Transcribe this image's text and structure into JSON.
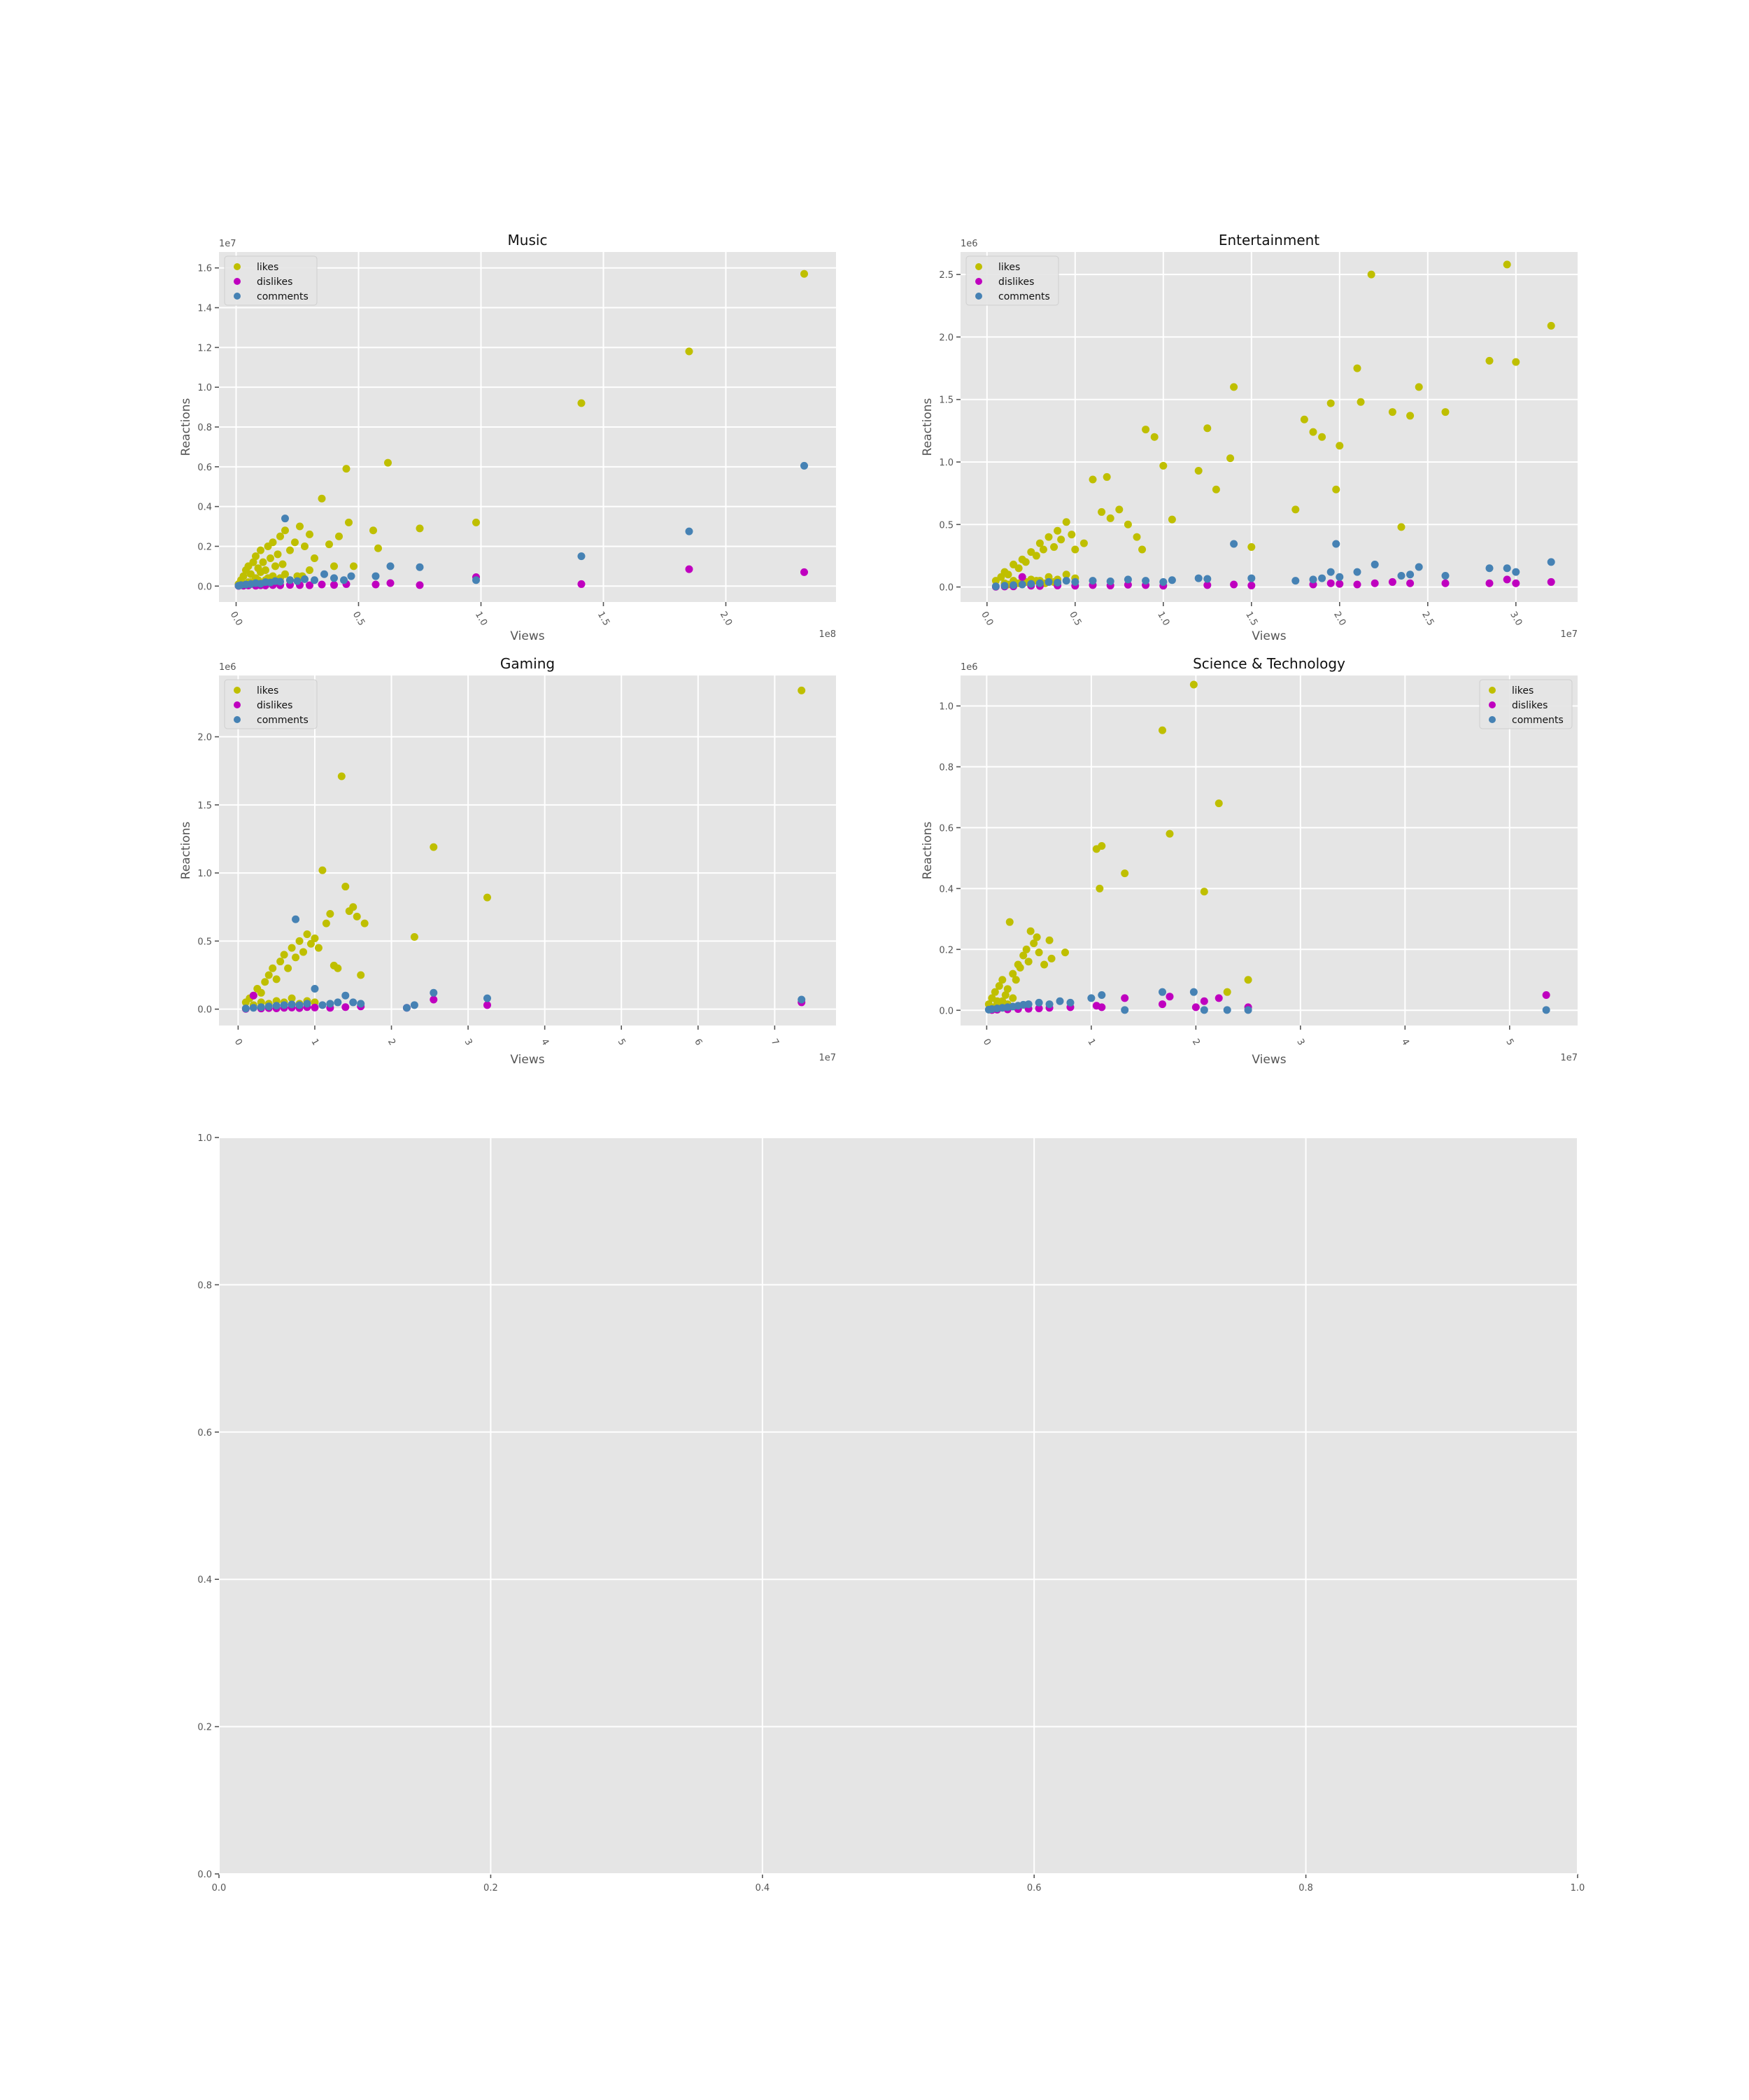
{
  "colors": {
    "likes": "#bfbf00",
    "dislikes": "#bf00bf",
    "comments": "#4682b4"
  },
  "chart_data": [
    {
      "type": "scatter",
      "title": "Music",
      "xlabel": "Views",
      "ylabel": "Reactions",
      "x_offset": "1e8",
      "y_offset": "1e7",
      "xlim": [
        -0.07,
        2.45
      ],
      "ylim": [
        -0.08,
        1.68
      ],
      "xticks": [
        0.0,
        0.5,
        1.0,
        1.5,
        2.0
      ],
      "yticks": [
        0.0,
        0.2,
        0.4,
        0.6,
        0.8,
        1.0,
        1.2,
        1.4,
        1.6
      ],
      "x_tick_decimals": 1,
      "y_tick_decimals": 1,
      "x_tick_rotation": 60,
      "legend_position": "upper-left",
      "series": [
        {
          "name": "likes",
          "color_key": "likes",
          "x": [
            0.01,
            0.02,
            0.03,
            0.04,
            0.05,
            0.06,
            0.07,
            0.08,
            0.09,
            0.1,
            0.11,
            0.12,
            0.13,
            0.14,
            0.15,
            0.16,
            0.17,
            0.18,
            0.19,
            0.2,
            0.22,
            0.24,
            0.26,
            0.28,
            0.3,
            0.32,
            0.35,
            0.38,
            0.4,
            0.42,
            0.45,
            0.46,
            0.48,
            0.56,
            0.58,
            0.62,
            0.75,
            0.98,
            1.41,
            1.85,
            2.32,
            0.05,
            0.08,
            0.1,
            0.12,
            0.15,
            0.18,
            0.2,
            0.25,
            0.3,
            0.06,
            0.09,
            0.13,
            0.17,
            0.22,
            0.27
          ],
          "y": [
            0.01,
            0.03,
            0.05,
            0.08,
            0.1,
            0.06,
            0.12,
            0.15,
            0.09,
            0.18,
            0.12,
            0.08,
            0.2,
            0.14,
            0.22,
            0.1,
            0.16,
            0.25,
            0.11,
            0.28,
            0.18,
            0.22,
            0.3,
            0.2,
            0.26,
            0.14,
            0.44,
            0.21,
            0.1,
            0.25,
            0.59,
            0.32,
            0.1,
            0.28,
            0.19,
            0.62,
            0.29,
            0.32,
            0.92,
            1.18,
            1.57,
            0.02,
            0.04,
            0.07,
            0.03,
            0.05,
            0.04,
            0.06,
            0.05,
            0.08,
            0.02,
            0.03,
            0.04,
            0.02,
            0.03,
            0.05
          ]
        },
        {
          "name": "dislikes",
          "color_key": "dislikes",
          "x": [
            0.01,
            0.03,
            0.05,
            0.08,
            0.1,
            0.12,
            0.15,
            0.18,
            0.22,
            0.26,
            0.3,
            0.35,
            0.4,
            0.45,
            0.57,
            0.63,
            0.75,
            0.98,
            1.41,
            1.85,
            2.32
          ],
          "y": [
            0.001,
            0.002,
            0.003,
            0.002,
            0.004,
            0.003,
            0.005,
            0.004,
            0.006,
            0.005,
            0.004,
            0.008,
            0.006,
            0.01,
            0.008,
            0.015,
            0.005,
            0.045,
            0.01,
            0.085,
            0.07
          ]
        },
        {
          "name": "comments",
          "color_key": "comments",
          "x": [
            0.01,
            0.02,
            0.04,
            0.06,
            0.08,
            0.1,
            0.12,
            0.14,
            0.16,
            0.18,
            0.2,
            0.22,
            0.25,
            0.28,
            0.32,
            0.36,
            0.4,
            0.44,
            0.47,
            0.57,
            0.63,
            0.75,
            0.98,
            1.41,
            1.85,
            2.32
          ],
          "y": [
            0.002,
            0.005,
            0.008,
            0.01,
            0.015,
            0.012,
            0.02,
            0.018,
            0.025,
            0.022,
            0.34,
            0.03,
            0.025,
            0.035,
            0.03,
            0.06,
            0.04,
            0.03,
            0.05,
            0.05,
            0.1,
            0.095,
            0.03,
            0.15,
            0.275,
            0.605
          ]
        }
      ]
    },
    {
      "type": "scatter",
      "title": "Entertainment",
      "xlabel": "Views",
      "ylabel": "Reactions",
      "x_offset": "1e7",
      "y_offset": "1e6",
      "xlim": [
        -0.15,
        3.35
      ],
      "ylim": [
        -0.12,
        2.68
      ],
      "xticks": [
        0.0,
        0.5,
        1.0,
        1.5,
        2.0,
        2.5,
        3.0
      ],
      "yticks": [
        0.0,
        0.5,
        1.0,
        1.5,
        2.0,
        2.5
      ],
      "x_tick_decimals": 1,
      "y_tick_decimals": 1,
      "x_tick_rotation": 60,
      "legend_position": "upper-left",
      "series": [
        {
          "name": "likes",
          "color_key": "likes",
          "x": [
            0.05,
            0.08,
            0.1,
            0.12,
            0.15,
            0.18,
            0.2,
            0.22,
            0.25,
            0.28,
            0.3,
            0.32,
            0.35,
            0.38,
            0.4,
            0.42,
            0.45,
            0.48,
            0.5,
            0.55,
            0.6,
            0.65,
            0.68,
            0.7,
            0.75,
            0.8,
            0.85,
            0.88,
            0.9,
            0.95,
            1.0,
            1.05,
            1.2,
            1.25,
            1.3,
            1.38,
            1.4,
            1.5,
            1.75,
            1.8,
            1.85,
            1.9,
            1.95,
            1.98,
            2.0,
            2.1,
            2.12,
            2.18,
            2.3,
            2.35,
            2.4,
            2.45,
            2.6,
            2.85,
            2.95,
            3.0,
            3.2,
            0.1,
            0.15,
            0.2,
            0.25,
            0.3,
            0.35,
            0.4,
            0.45,
            0.5,
            0.12,
            0.18,
            0.22,
            0.28,
            0.33,
            0.38
          ],
          "y": [
            0.05,
            0.08,
            0.12,
            0.1,
            0.18,
            0.15,
            0.22,
            0.2,
            0.28,
            0.25,
            0.35,
            0.3,
            0.4,
            0.32,
            0.45,
            0.38,
            0.52,
            0.42,
            0.3,
            0.35,
            0.86,
            0.6,
            0.88,
            0.55,
            0.62,
            0.5,
            0.4,
            0.3,
            1.26,
            1.2,
            0.97,
            0.54,
            0.93,
            1.27,
            0.78,
            1.03,
            1.6,
            0.32,
            0.62,
            1.34,
            1.24,
            1.2,
            1.47,
            0.78,
            1.13,
            1.75,
            1.48,
            2.5,
            1.4,
            0.48,
            1.37,
            1.6,
            1.4,
            1.81,
            2.58,
            1.8,
            2.09,
            0.03,
            0.05,
            0.04,
            0.06,
            0.05,
            0.08,
            0.06,
            0.1,
            0.07,
            0.02,
            0.03,
            0.04,
            0.05,
            0.03,
            0.04
          ]
        },
        {
          "name": "dislikes",
          "color_key": "dislikes",
          "x": [
            0.05,
            0.1,
            0.15,
            0.2,
            0.25,
            0.3,
            0.4,
            0.5,
            0.6,
            0.7,
            0.8,
            0.9,
            1.0,
            1.25,
            1.4,
            1.5,
            1.85,
            1.95,
            2.0,
            2.1,
            2.2,
            2.3,
            2.4,
            2.6,
            2.85,
            2.95,
            3.0,
            3.2
          ],
          "y": [
            0.002,
            0.004,
            0.005,
            0.08,
            0.01,
            0.008,
            0.012,
            0.01,
            0.015,
            0.012,
            0.018,
            0.015,
            0.01,
            0.015,
            0.02,
            0.012,
            0.02,
            0.03,
            0.025,
            0.02,
            0.03,
            0.04,
            0.03,
            0.03,
            0.03,
            0.06,
            0.03,
            0.04
          ]
        },
        {
          "name": "comments",
          "color_key": "comments",
          "x": [
            0.05,
            0.1,
            0.15,
            0.2,
            0.25,
            0.3,
            0.35,
            0.4,
            0.45,
            0.5,
            0.6,
            0.7,
            0.8,
            0.9,
            1.0,
            1.05,
            1.2,
            1.25,
            1.4,
            1.5,
            1.75,
            1.85,
            1.9,
            1.95,
            1.98,
            2.0,
            2.1,
            2.2,
            2.35,
            2.4,
            2.45,
            2.6,
            2.85,
            2.95,
            3.0,
            3.2
          ],
          "y": [
            0.005,
            0.01,
            0.015,
            0.02,
            0.025,
            0.03,
            0.04,
            0.035,
            0.05,
            0.04,
            0.05,
            0.045,
            0.06,
            0.05,
            0.04,
            0.055,
            0.07,
            0.065,
            0.345,
            0.07,
            0.05,
            0.06,
            0.07,
            0.12,
            0.345,
            0.08,
            0.12,
            0.18,
            0.09,
            0.1,
            0.16,
            0.09,
            0.15,
            0.15,
            0.12,
            0.2
          ]
        }
      ]
    },
    {
      "type": "scatter",
      "title": "Gaming",
      "xlabel": "Views",
      "ylabel": "Reactions",
      "x_offset": "1e7",
      "y_offset": "1e6",
      "xlim": [
        -0.25,
        7.8
      ],
      "ylim": [
        -0.12,
        2.45
      ],
      "xticks": [
        0,
        1,
        2,
        3,
        4,
        5,
        6,
        7
      ],
      "yticks": [
        0.0,
        0.5,
        1.0,
        1.5,
        2.0
      ],
      "x_tick_decimals": 0,
      "y_tick_decimals": 1,
      "x_tick_rotation": 60,
      "legend_position": "upper-left",
      "series": [
        {
          "name": "likes",
          "color_key": "likes",
          "x": [
            0.1,
            0.15,
            0.2,
            0.25,
            0.3,
            0.35,
            0.4,
            0.45,
            0.5,
            0.55,
            0.6,
            0.65,
            0.7,
            0.75,
            0.8,
            0.85,
            0.9,
            0.95,
            1.0,
            1.05,
            1.1,
            1.15,
            1.2,
            1.25,
            1.3,
            1.35,
            1.4,
            1.45,
            1.5,
            1.55,
            1.6,
            1.65,
            2.3,
            2.55,
            3.25,
            7.35,
            0.2,
            0.3,
            0.4,
            0.5,
            0.6,
            0.7,
            0.8,
            0.9,
            1.0
          ],
          "y": [
            0.05,
            0.08,
            0.1,
            0.15,
            0.12,
            0.2,
            0.25,
            0.3,
            0.22,
            0.35,
            0.4,
            0.3,
            0.45,
            0.38,
            0.5,
            0.42,
            0.55,
            0.48,
            0.52,
            0.45,
            1.02,
            0.63,
            0.7,
            0.32,
            0.3,
            1.71,
            0.9,
            0.72,
            0.75,
            0.68,
            0.25,
            0.63,
            0.53,
            1.19,
            0.82,
            2.34,
            0.03,
            0.05,
            0.04,
            0.06,
            0.05,
            0.08,
            0.04,
            0.06,
            0.05
          ]
        },
        {
          "name": "dislikes",
          "color_key": "dislikes",
          "x": [
            0.1,
            0.2,
            0.3,
            0.4,
            0.5,
            0.6,
            0.7,
            0.8,
            0.9,
            1.0,
            1.2,
            1.4,
            1.6,
            2.2,
            2.55,
            3.25,
            7.35
          ],
          "y": [
            0.002,
            0.1,
            0.005,
            0.008,
            0.006,
            0.01,
            0.012,
            0.008,
            0.015,
            0.012,
            0.01,
            0.015,
            0.02,
            0.01,
            0.07,
            0.03,
            0.05
          ]
        },
        {
          "name": "comments",
          "color_key": "comments",
          "x": [
            0.1,
            0.2,
            0.3,
            0.4,
            0.5,
            0.6,
            0.7,
            0.75,
            0.8,
            0.9,
            1.0,
            1.1,
            1.2,
            1.3,
            1.4,
            1.5,
            1.6,
            2.2,
            2.3,
            2.55,
            3.25,
            7.35
          ],
          "y": [
            0.005,
            0.01,
            0.015,
            0.02,
            0.025,
            0.03,
            0.035,
            0.66,
            0.03,
            0.04,
            0.15,
            0.03,
            0.04,
            0.05,
            0.1,
            0.05,
            0.04,
            0.01,
            0.03,
            0.12,
            0.08,
            0.07
          ]
        }
      ]
    },
    {
      "type": "scatter",
      "title": "Science & Technology",
      "xlabel": "Views",
      "ylabel": "Reactions",
      "x_offset": "1e7",
      "y_offset": "1e6",
      "xlim": [
        -0.25,
        5.65
      ],
      "ylim": [
        -0.05,
        1.1
      ],
      "xticks": [
        0,
        1,
        2,
        3,
        4,
        5
      ],
      "yticks": [
        0.0,
        0.2,
        0.4,
        0.6,
        0.8,
        1.0
      ],
      "x_tick_decimals": 0,
      "y_tick_decimals": 1,
      "x_tick_rotation": 60,
      "legend_position": "upper-right",
      "series": [
        {
          "name": "likes",
          "color_key": "likes",
          "x": [
            0.02,
            0.05,
            0.08,
            0.1,
            0.12,
            0.15,
            0.18,
            0.2,
            0.22,
            0.25,
            0.28,
            0.3,
            0.32,
            0.35,
            0.38,
            0.4,
            0.42,
            0.45,
            0.48,
            0.5,
            0.55,
            0.6,
            0.62,
            0.75,
            1.05,
            1.08,
            1.1,
            1.32,
            1.68,
            1.75,
            1.98,
            2.08,
            2.22,
            2.3,
            2.5,
            0.05,
            0.1,
            0.15,
            0.2,
            0.25
          ],
          "y": [
            0.02,
            0.04,
            0.06,
            0.03,
            0.08,
            0.1,
            0.05,
            0.07,
            0.29,
            0.12,
            0.1,
            0.15,
            0.14,
            0.18,
            0.2,
            0.16,
            0.26,
            0.22,
            0.24,
            0.19,
            0.15,
            0.23,
            0.17,
            0.19,
            0.53,
            0.4,
            0.54,
            0.45,
            0.92,
            0.58,
            1.07,
            0.39,
            0.68,
            0.06,
            0.1,
            0.01,
            0.02,
            0.03,
            0.02,
            0.04
          ]
        },
        {
          "name": "dislikes",
          "color_key": "dislikes",
          "x": [
            0.05,
            0.1,
            0.2,
            0.3,
            0.4,
            0.5,
            0.6,
            0.8,
            1.05,
            1.1,
            1.32,
            1.68,
            1.75,
            2.0,
            2.08,
            2.22,
            2.5,
            5.35
          ],
          "y": [
            0.001,
            0.002,
            0.003,
            0.004,
            0.005,
            0.006,
            0.008,
            0.01,
            0.015,
            0.01,
            0.04,
            0.02,
            0.045,
            0.01,
            0.03,
            0.04,
            0.01,
            0.05
          ]
        },
        {
          "name": "comments",
          "color_key": "comments",
          "x": [
            0.02,
            0.05,
            0.1,
            0.15,
            0.2,
            0.25,
            0.3,
            0.35,
            0.4,
            0.5,
            0.6,
            0.7,
            0.8,
            1.0,
            1.1,
            1.32,
            1.68,
            1.98,
            2.08,
            2.3,
            2.5,
            5.35
          ],
          "y": [
            0.002,
            0.004,
            0.006,
            0.008,
            0.01,
            0.012,
            0.015,
            0.018,
            0.02,
            0.025,
            0.02,
            0.03,
            0.025,
            0.04,
            0.05,
            0.001,
            0.06,
            0.06,
            0.001,
            0.001,
            0.001,
            0.001
          ]
        }
      ]
    },
    {
      "type": "scatter",
      "title": "",
      "xlabel": "",
      "ylabel": "",
      "x_offset": "",
      "y_offset": "",
      "xlim": [
        0.0,
        1.0
      ],
      "ylim": [
        0.0,
        1.0
      ],
      "xticks": [
        0.0,
        0.2,
        0.4,
        0.6,
        0.8,
        1.0
      ],
      "yticks": [
        0.0,
        0.2,
        0.4,
        0.6,
        0.8,
        1.0
      ],
      "x_tick_decimals": 1,
      "y_tick_decimals": 1,
      "x_tick_rotation": 0,
      "legend_position": "none",
      "series": []
    }
  ]
}
